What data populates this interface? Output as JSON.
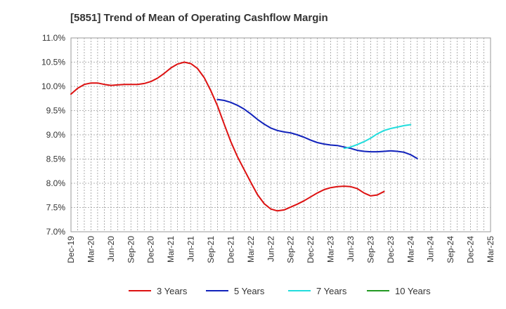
{
  "chart_data": {
    "type": "line",
    "title": "[5851]  Trend of Mean of Operating Cashflow Margin",
    "xlabel": "",
    "ylabel": "",
    "ylim": [
      7.0,
      11.0
    ],
    "yticks": [
      7.0,
      7.5,
      8.0,
      8.5,
      9.0,
      9.5,
      10.0,
      10.5,
      11.0
    ],
    "ytick_labels": [
      "7.0%",
      "7.5%",
      "8.0%",
      "8.5%",
      "9.0%",
      "9.5%",
      "10.0%",
      "10.5%",
      "11.0%"
    ],
    "categories": [
      "Dec-19",
      "Mar-20",
      "Jun-20",
      "Sep-20",
      "Dec-20",
      "Mar-21",
      "Jun-21",
      "Sep-21",
      "Dec-21",
      "Mar-22",
      "Jun-22",
      "Sep-22",
      "Dec-22",
      "Mar-23",
      "Jun-23",
      "Sep-23",
      "Dec-23",
      "Mar-24",
      "Jun-24",
      "Sep-24",
      "Dec-24",
      "Mar-25"
    ],
    "grid": true,
    "legend_position": "bottom",
    "series": [
      {
        "name": "3 Years",
        "color": "#dd1111",
        "points": [
          [
            0,
            9.84
          ],
          [
            0.33,
            9.96
          ],
          [
            0.67,
            10.04
          ],
          [
            1,
            10.07
          ],
          [
            1.33,
            10.07
          ],
          [
            1.67,
            10.04
          ],
          [
            2,
            10.02
          ],
          [
            2.33,
            10.03
          ],
          [
            2.67,
            10.04
          ],
          [
            3,
            10.04
          ],
          [
            3.33,
            10.04
          ],
          [
            3.67,
            10.06
          ],
          [
            4,
            10.1
          ],
          [
            4.33,
            10.17
          ],
          [
            4.67,
            10.27
          ],
          [
            5,
            10.38
          ],
          [
            5.33,
            10.46
          ],
          [
            5.67,
            10.5
          ],
          [
            6,
            10.47
          ],
          [
            6.33,
            10.37
          ],
          [
            6.67,
            10.18
          ],
          [
            7,
            9.91
          ],
          [
            7.33,
            9.6
          ],
          [
            7.67,
            9.22
          ],
          [
            8,
            8.86
          ],
          [
            8.33,
            8.55
          ],
          [
            8.67,
            8.28
          ],
          [
            9,
            8.02
          ],
          [
            9.33,
            7.77
          ],
          [
            9.67,
            7.58
          ],
          [
            10,
            7.47
          ],
          [
            10.33,
            7.43
          ],
          [
            10.67,
            7.45
          ],
          [
            11,
            7.51
          ],
          [
            11.33,
            7.57
          ],
          [
            11.67,
            7.64
          ],
          [
            12,
            7.72
          ],
          [
            12.33,
            7.8
          ],
          [
            12.67,
            7.87
          ],
          [
            13,
            7.91
          ],
          [
            13.33,
            7.93
          ],
          [
            13.67,
            7.94
          ],
          [
            14,
            7.93
          ],
          [
            14.33,
            7.89
          ],
          [
            14.67,
            7.8
          ],
          [
            15,
            7.74
          ],
          [
            15.33,
            7.76
          ],
          [
            15.67,
            7.83
          ]
        ]
      },
      {
        "name": "5 Years",
        "color": "#1122bb",
        "points": [
          [
            7.33,
            9.73
          ],
          [
            7.67,
            9.71
          ],
          [
            8,
            9.67
          ],
          [
            8.33,
            9.61
          ],
          [
            8.67,
            9.53
          ],
          [
            9,
            9.43
          ],
          [
            9.33,
            9.32
          ],
          [
            9.67,
            9.22
          ],
          [
            10,
            9.14
          ],
          [
            10.33,
            9.09
          ],
          [
            10.67,
            9.06
          ],
          [
            11,
            9.04
          ],
          [
            11.33,
            9.0
          ],
          [
            11.67,
            8.95
          ],
          [
            12,
            8.89
          ],
          [
            12.33,
            8.84
          ],
          [
            12.67,
            8.81
          ],
          [
            13,
            8.79
          ],
          [
            13.33,
            8.78
          ],
          [
            13.67,
            8.75
          ],
          [
            14,
            8.72
          ],
          [
            14.33,
            8.68
          ],
          [
            14.67,
            8.66
          ],
          [
            15,
            8.65
          ],
          [
            15.33,
            8.65
          ],
          [
            15.67,
            8.66
          ],
          [
            16,
            8.67
          ],
          [
            16.33,
            8.66
          ],
          [
            16.67,
            8.64
          ],
          [
            17,
            8.59
          ],
          [
            17.33,
            8.51
          ]
        ]
      },
      {
        "name": "7 Years",
        "color": "#22dddd",
        "points": [
          [
            13.67,
            8.72
          ],
          [
            14,
            8.75
          ],
          [
            14.33,
            8.8
          ],
          [
            14.67,
            8.86
          ],
          [
            15,
            8.93
          ],
          [
            15.33,
            9.02
          ],
          [
            15.67,
            9.09
          ],
          [
            16,
            9.13
          ],
          [
            16.33,
            9.16
          ],
          [
            16.67,
            9.19
          ],
          [
            17,
            9.21
          ]
        ]
      },
      {
        "name": "10 Years",
        "color": "#229922",
        "points": []
      }
    ]
  }
}
